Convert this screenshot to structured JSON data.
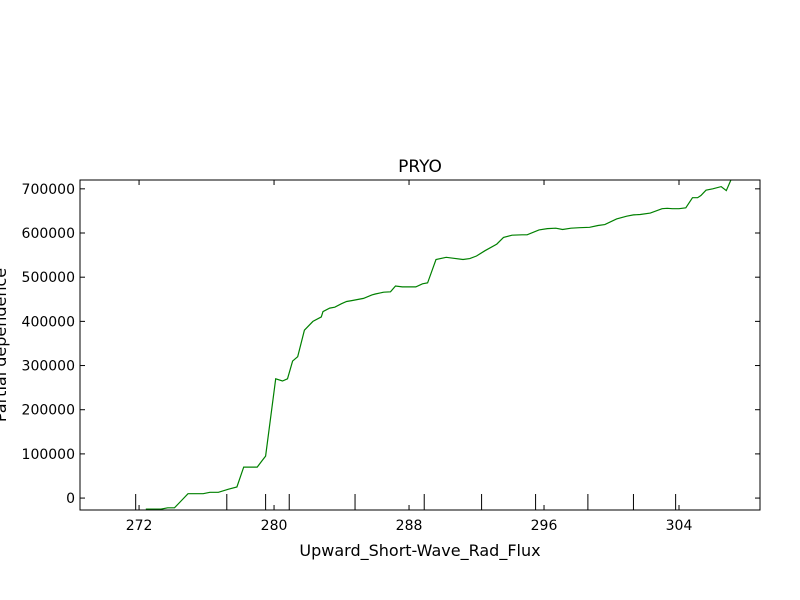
{
  "chart_data": {
    "type": "line",
    "title": "PRYO",
    "xlabel": "Upward_Short-Wave_Rad_Flux",
    "ylabel": "Partial dependence",
    "xlim": [
      268.5,
      308.8
    ],
    "ylim": [
      -27000,
      720000
    ],
    "x_ticks": [
      272,
      280,
      288,
      296,
      304
    ],
    "y_ticks": [
      0,
      100000,
      200000,
      300000,
      400000,
      500000,
      600000,
      700000
    ],
    "rug_x": [
      271.8,
      277.2,
      279.5,
      280.9,
      284.8,
      288.9,
      292.3,
      295.5,
      298.6,
      301.3,
      303.8
    ],
    "grid": false,
    "series": [
      {
        "color": "#008000",
        "x": [
          272.4,
          273.3,
          273.7,
          274.1,
          274.4,
          274.9,
          275.3,
          275.8,
          276.2,
          276.7,
          277.3,
          277.8,
          278.2,
          279.0,
          279.3,
          279.5,
          280.1,
          280.5,
          280.8,
          281.1,
          281.4,
          281.8,
          282.3,
          282.8,
          282.9,
          283.3,
          283.6,
          284.0,
          284.3,
          284.6,
          285.3,
          285.8,
          286.0,
          286.5,
          286.9,
          287.2,
          287.6,
          288.0,
          288.4,
          288.8,
          289.1,
          289.6,
          290.2,
          290.6,
          291.2,
          291.6,
          292.0,
          292.5,
          293.2,
          293.6,
          294.1,
          294.7,
          295.0,
          295.7,
          296.2,
          296.7,
          297.1,
          297.6,
          298.1,
          298.7,
          299.2,
          299.6,
          300.3,
          300.9,
          301.3,
          301.7,
          302.3,
          303.0,
          303.3,
          303.6,
          304.0,
          304.4,
          304.8,
          305.1,
          305.3,
          305.6,
          306.0,
          306.5,
          306.8,
          307.1
        ],
        "y": [
          -25000,
          -25000,
          -22000,
          -22000,
          -10000,
          10000,
          10000,
          10000,
          13000,
          13000,
          20000,
          25000,
          70000,
          70000,
          85000,
          95000,
          270000,
          265000,
          270000,
          310000,
          320000,
          380000,
          400000,
          410000,
          422000,
          430000,
          432000,
          440000,
          445000,
          447000,
          452000,
          460000,
          462000,
          466000,
          467000,
          480000,
          478000,
          478000,
          478000,
          485000,
          487000,
          540000,
          545000,
          543000,
          540000,
          542000,
          548000,
          560000,
          575000,
          590000,
          595000,
          596000,
          596000,
          607000,
          610000,
          611000,
          608000,
          611000,
          612000,
          613000,
          617000,
          619000,
          632000,
          638000,
          641000,
          642000,
          645000,
          655000,
          656000,
          655000,
          655000,
          657000,
          680000,
          680000,
          685000,
          697000,
          700000,
          705000,
          696000,
          722000
        ]
      }
    ]
  }
}
